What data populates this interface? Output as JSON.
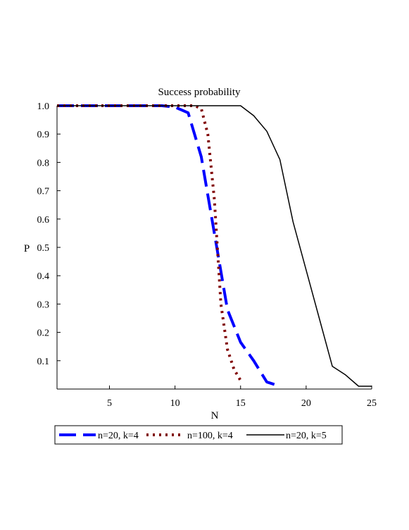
{
  "chart_data": {
    "type": "line",
    "title": "Success probability",
    "xlabel": "N",
    "ylabel": "P",
    "xlim": [
      1,
      25
    ],
    "ylim": [
      0,
      1.0
    ],
    "xticks": [
      5,
      10,
      15,
      20,
      25
    ],
    "yticks": [
      0.1,
      0.2,
      0.3,
      0.4,
      0.5,
      0.6,
      0.7,
      0.8,
      0.9,
      1.0
    ],
    "xtick_labels": [
      "5",
      "10",
      "15",
      "20",
      "25"
    ],
    "ytick_labels": [
      "0.1",
      "0.2",
      "0.3",
      "0.4",
      "0.5",
      "0.6",
      "0.7",
      "0.8",
      "0.9",
      "1.0"
    ],
    "grid": false,
    "legend_position": "bottom",
    "series": [
      {
        "name": "n=20, k=4",
        "color": "#0000ff",
        "style": "dash",
        "x": [
          1,
          5,
          8,
          9,
          10,
          11,
          12,
          13,
          14,
          15,
          16,
          17,
          18
        ],
        "y": [
          1.0,
          1.0,
          1.0,
          1.0,
          0.995,
          0.975,
          0.82,
          0.55,
          0.28,
          0.165,
          0.1,
          0.025,
          0.01
        ]
      },
      {
        "name": "n=100, k=4",
        "color": "#800000",
        "style": "dot",
        "x": [
          1,
          5,
          10,
          11,
          11.5,
          12,
          12.5,
          13,
          13.5,
          14,
          14.5,
          15
        ],
        "y": [
          1.0,
          1.0,
          1.0,
          1.0,
          1.0,
          0.99,
          0.9,
          0.67,
          0.3,
          0.14,
          0.07,
          0.03
        ]
      },
      {
        "name": "n=20, k=5",
        "color": "#000000",
        "style": "solid",
        "x": [
          1,
          5,
          10,
          14,
          15,
          16,
          17,
          18,
          19,
          20,
          21,
          22,
          23,
          24,
          25
        ],
        "y": [
          1.0,
          1.0,
          1.0,
          1.0,
          1.0,
          0.965,
          0.91,
          0.81,
          0.59,
          0.42,
          0.25,
          0.08,
          0.05,
          0.01,
          0.01
        ]
      }
    ]
  }
}
